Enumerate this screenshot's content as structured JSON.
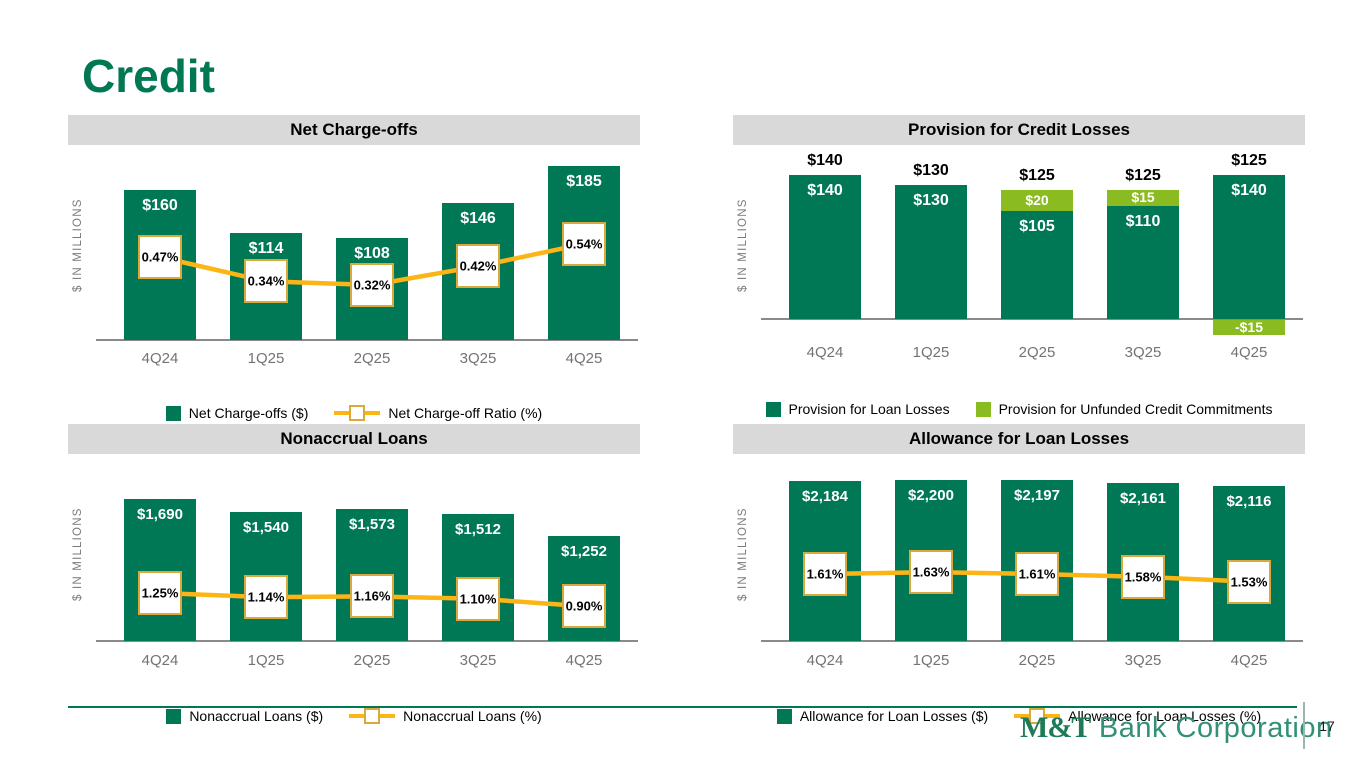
{
  "page": {
    "title": "Credit",
    "page_number": "17"
  },
  "footer": {
    "brand_serif": "M&T",
    "brand_rest": "Bank Corporation"
  },
  "colors": {
    "dark_green": "#007856",
    "light_green": "#8abb21",
    "amber": "#fdb515",
    "amber_dark": "#d9a93c",
    "banner_bg": "#d9d9d9",
    "heading_green": "#007853"
  },
  "chart_data": [
    {
      "id": "net-charge-offs",
      "type": "bar",
      "title": "Net Charge-offs",
      "ylabel": "$ IN MILLIONS",
      "categories": [
        "4Q24",
        "1Q25",
        "2Q25",
        "3Q25",
        "4Q25"
      ],
      "series": [
        {
          "name": "Net Charge-offs ($)",
          "type": "bar",
          "values": [
            160,
            114,
            108,
            146,
            185
          ],
          "labels": [
            "$160",
            "$114",
            "$108",
            "$146",
            "$185"
          ]
        },
        {
          "name": "Net Charge-off Ratio (%)",
          "type": "line",
          "values": [
            0.47,
            0.34,
            0.32,
            0.42,
            0.54
          ],
          "labels": [
            "0.47%",
            "0.34%",
            "0.32%",
            "0.42%",
            "0.54%"
          ]
        }
      ],
      "legend": [
        {
          "kind": "bar",
          "color_key": "dark_green",
          "label": "Net Charge-offs ($)"
        },
        {
          "kind": "line",
          "label": "Net Charge-off Ratio (%)"
        }
      ]
    },
    {
      "id": "provision-for-credit-losses",
      "type": "stacked-bar",
      "title": "Provision for Credit Losses",
      "ylabel": "$ IN MILLIONS",
      "categories": [
        "4Q24",
        "1Q25",
        "2Q25",
        "3Q25",
        "4Q25"
      ],
      "series": [
        {
          "name": "Provision for Loan Losses",
          "type": "bar",
          "values": [
            140,
            130,
            105,
            110,
            140
          ],
          "labels": [
            "$140",
            "$130",
            "$105",
            "$110",
            "$140"
          ]
        },
        {
          "name": "Provision for Unfunded Credit Commitments",
          "type": "bar",
          "values": [
            0,
            0,
            20,
            15,
            -15
          ],
          "labels": [
            "",
            "",
            "$20",
            "$15",
            "-$15"
          ]
        }
      ],
      "totals": [
        "$140",
        "$130",
        "$125",
        "$125",
        "$125"
      ],
      "legend": [
        {
          "kind": "bar",
          "color_key": "dark_green",
          "label": "Provision for Loan Losses"
        },
        {
          "kind": "bar",
          "color_key": "light_green",
          "label": "Provision for Unfunded Credit Commitments"
        }
      ]
    },
    {
      "id": "nonaccrual-loans",
      "type": "bar",
      "title": "Nonaccrual Loans",
      "ylabel": "$ IN MILLIONS",
      "categories": [
        "4Q24",
        "1Q25",
        "2Q25",
        "3Q25",
        "4Q25"
      ],
      "series": [
        {
          "name": "Nonaccrual Loans ($)",
          "type": "bar",
          "values": [
            1690,
            1540,
            1573,
            1512,
            1252
          ],
          "labels": [
            "$1,690",
            "$1,540",
            "$1,573",
            "$1,512",
            "$1,252"
          ]
        },
        {
          "name": "Nonaccrual Loans (%)",
          "type": "line",
          "values": [
            1.25,
            1.14,
            1.16,
            1.1,
            0.9
          ],
          "labels": [
            "1.25%",
            "1.14%",
            "1.16%",
            "1.10%",
            "0.90%"
          ]
        }
      ],
      "legend": [
        {
          "kind": "bar",
          "color_key": "dark_green",
          "label": "Nonaccrual Loans ($)"
        },
        {
          "kind": "line",
          "label": "Nonaccrual Loans (%)"
        }
      ]
    },
    {
      "id": "allowance-for-loan-losses",
      "type": "bar",
      "title": "Allowance for Loan Losses",
      "ylabel": "$ IN MILLIONS",
      "categories": [
        "4Q24",
        "1Q25",
        "2Q25",
        "3Q25",
        "4Q25"
      ],
      "series": [
        {
          "name": "Allowance for Loan Losses ($)",
          "type": "bar",
          "values": [
            2184,
            2200,
            2197,
            2161,
            2116
          ],
          "labels": [
            "$2,184",
            "$2,200",
            "$2,197",
            "$2,161",
            "$2,116"
          ]
        },
        {
          "name": "Allowance for Loan Losses (%)",
          "type": "line",
          "values": [
            1.61,
            1.63,
            1.61,
            1.58,
            1.53
          ],
          "labels": [
            "1.61%",
            "1.63%",
            "1.61%",
            "1.58%",
            "1.53%"
          ]
        }
      ],
      "legend": [
        {
          "kind": "bar",
          "color_key": "dark_green",
          "label": "Allowance for Loan Losses ($)"
        },
        {
          "kind": "line",
          "label": "Allowance for Loan Losses (%)"
        }
      ]
    }
  ]
}
